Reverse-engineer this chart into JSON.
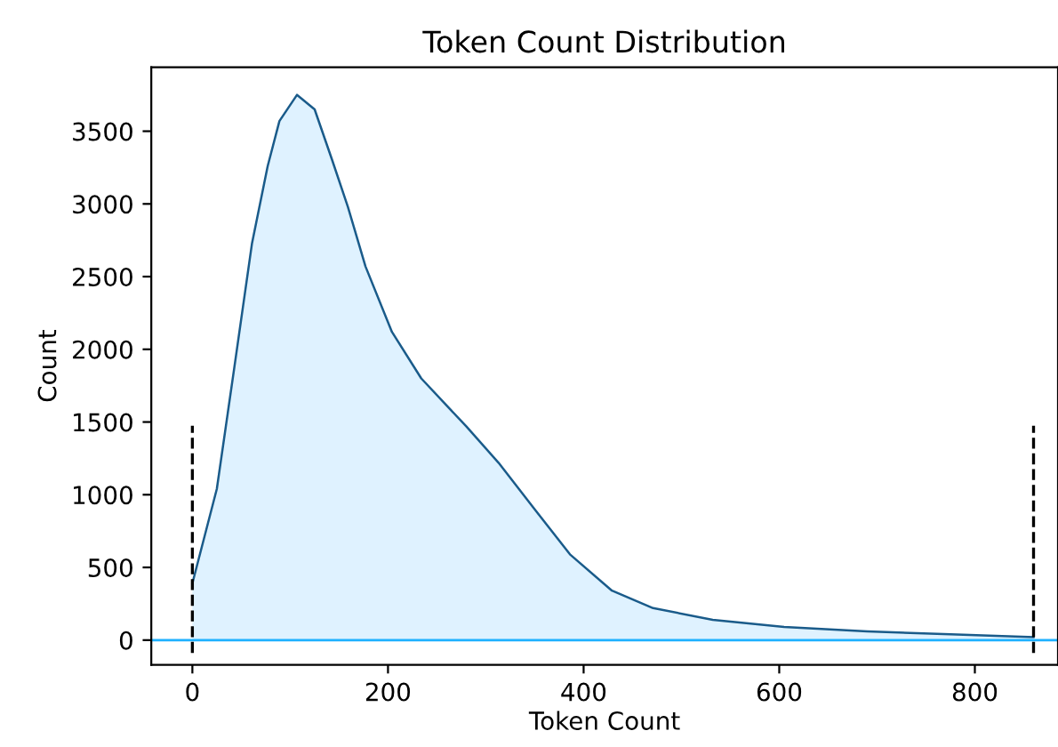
{
  "chart_data": {
    "type": "area",
    "title": "Token Count Distribution",
    "xlabel": "Token Count",
    "ylabel": "Count",
    "series": [
      {
        "color": "#1a5b8a",
        "x": [
          0,
          25,
          43,
          61,
          77,
          89,
          107,
          125,
          143,
          159,
          177,
          204,
          234,
          280,
          313,
          350,
          386,
          429,
          471,
          532,
          605,
          690,
          775,
          860
        ],
        "values": [
          390,
          1040,
          1880,
          2730,
          3260,
          3570,
          3750,
          3650,
          3300,
          2980,
          2570,
          2120,
          1800,
          1470,
          1220,
          900,
          590,
          340,
          220,
          140,
          90,
          60,
          40,
          20
        ]
      }
    ],
    "xlim": [
      -42,
      885
    ],
    "ylim": [
      -170,
      3940
    ],
    "xticks": [
      0,
      200,
      400,
      600,
      800
    ],
    "yticks": [
      0,
      500,
      1000,
      1500,
      2000,
      2500,
      3000,
      3500
    ],
    "ref_lines": [
      {
        "axis": "y",
        "value": 0,
        "color": "#1fb1ff",
        "line_style": "solid"
      },
      {
        "axis": "x",
        "value": 0,
        "color": "#000000",
        "line_style": "dashed"
      },
      {
        "axis": "x",
        "value": 860,
        "color": "#000000",
        "line_style": "dashed"
      }
    ],
    "grid": false,
    "legend": false
  }
}
